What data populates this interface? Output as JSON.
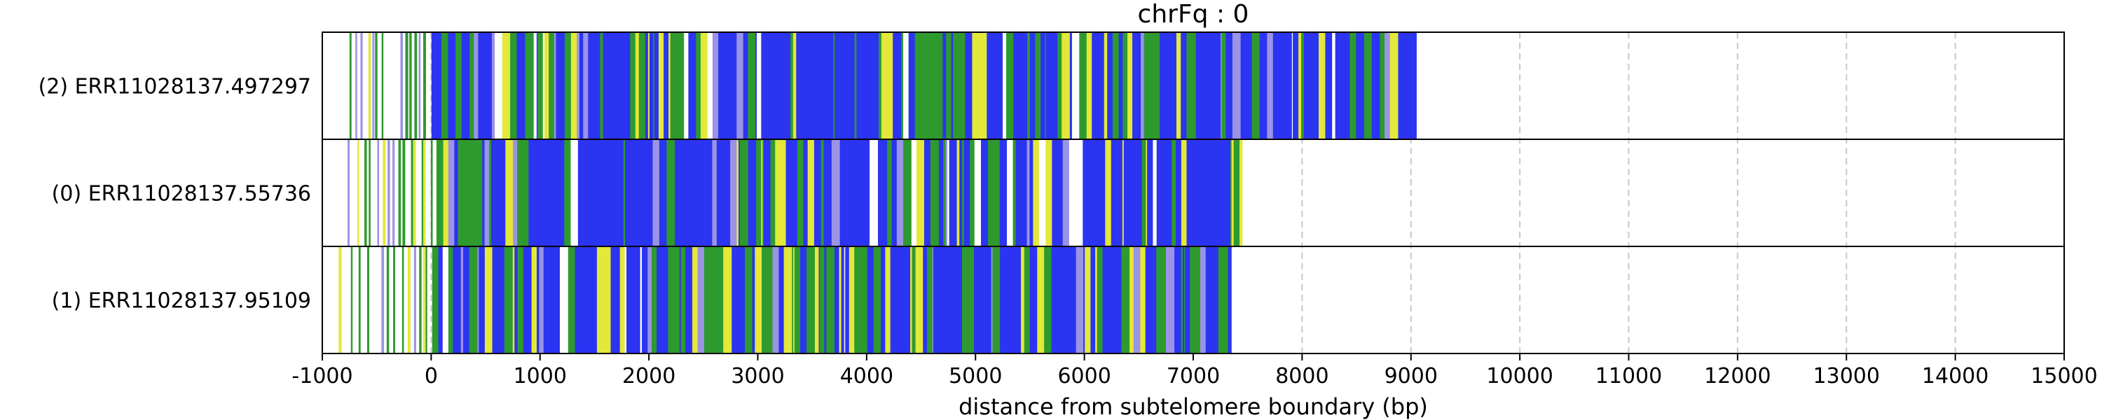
{
  "chart_data": {
    "type": "bar",
    "title": "chrFq : 0",
    "xlabel": "distance from subtelomere boundary (bp)",
    "ylabel": "",
    "xlim": [
      -1000,
      15000
    ],
    "xticks": [
      -1000,
      0,
      1000,
      2000,
      3000,
      4000,
      5000,
      6000,
      7000,
      8000,
      9000,
      10000,
      11000,
      12000,
      13000,
      14000,
      15000
    ],
    "tick_labels": [
      "-1000",
      "0",
      "1000",
      "2000",
      "3000",
      "4000",
      "5000",
      "6000",
      "7000",
      "8000",
      "9000",
      "10000",
      "11000",
      "12000",
      "13000",
      "14000",
      "15000"
    ],
    "grid": "vertical dashed",
    "colors": {
      "blue": "#2b34f0",
      "green": "#2e9a2e",
      "yellow": "#e3e83a",
      "lavender": "#9a93e6",
      "white": "#ffffff"
    },
    "reads": [
      {
        "label": "(2) ERR11028137.497297",
        "start": -750,
        "end": 9050,
        "seed": 7
      },
      {
        "label": "(0) ERR11028137.55736",
        "start": -850,
        "end": 7450,
        "seed": 13
      },
      {
        "label": "(1) ERR11028137.95109",
        "start": -850,
        "end": 7350,
        "seed": 29
      }
    ]
  }
}
